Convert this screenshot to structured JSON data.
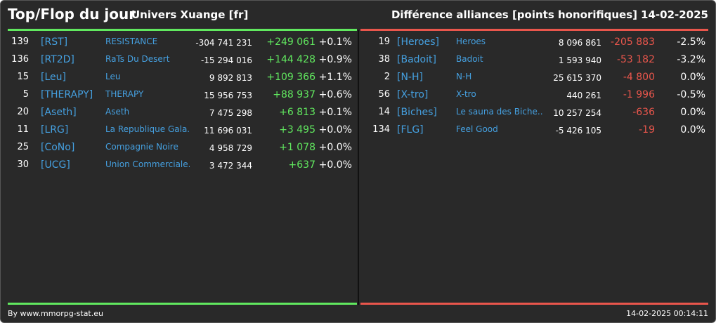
{
  "header": {
    "title": "Top/Flop du jour",
    "univers": "Univers Xuange [fr]",
    "description": "Différence alliances [points honorifiques]",
    "date": "14-02-2025"
  },
  "colors": {
    "background": "#292929",
    "positive": "#61e85f",
    "negative": "#e9564c",
    "link": "#45a0e0"
  },
  "top": [
    {
      "rank": "139",
      "tag": "[RST]",
      "name": "RESISTANCE",
      "total": "-304 741 231",
      "diff": "+249 061",
      "pct": "+0.1%"
    },
    {
      "rank": "136",
      "tag": "[RT2D]",
      "name": "RaTs Du Desert",
      "total": "-15 294 016",
      "diff": "+144 428",
      "pct": "+0.9%"
    },
    {
      "rank": "15",
      "tag": "[Leu]",
      "name": "Leu",
      "total": "9 892 813",
      "diff": "+109 366",
      "pct": "+1.1%"
    },
    {
      "rank": "5",
      "tag": "[THERAPY]",
      "name": "THERAPY",
      "total": "15 956 753",
      "diff": "+88 937",
      "pct": "+0.6%"
    },
    {
      "rank": "20",
      "tag": "[Aseth]",
      "name": "Aseth",
      "total": "7 475 298",
      "diff": "+6 813",
      "pct": "+0.1%"
    },
    {
      "rank": "11",
      "tag": "[LRG]",
      "name": "La Republique Gala...",
      "total": "11 696 031",
      "diff": "+3 495",
      "pct": "+0.0%"
    },
    {
      "rank": "25",
      "tag": "[CoNo]",
      "name": "Compagnie Noire",
      "total": "4 958 729",
      "diff": "+1 078",
      "pct": "+0.0%"
    },
    {
      "rank": "30",
      "tag": "[UCG]",
      "name": "Union Commerciale...",
      "total": "3 472 344",
      "diff": "+637",
      "pct": "+0.0%"
    }
  ],
  "flop": [
    {
      "rank": "19",
      "tag": "[Heroes]",
      "name": "Heroes",
      "total": "8 096 861",
      "diff": "-205 883",
      "pct": "-2.5%"
    },
    {
      "rank": "38",
      "tag": "[Badoit]",
      "name": "Badoit",
      "total": "1 593 940",
      "diff": "-53 182",
      "pct": "-3.2%"
    },
    {
      "rank": "2",
      "tag": "[N-H]",
      "name": "N-H",
      "total": "25 615 370",
      "diff": "-4 800",
      "pct": "0.0%"
    },
    {
      "rank": "56",
      "tag": "[X-tro]",
      "name": "X-tro",
      "total": "440 261",
      "diff": "-1 996",
      "pct": "-0.5%"
    },
    {
      "rank": "14",
      "tag": "[Biches]",
      "name": "Le sauna des Biche...",
      "total": "10 257 254",
      "diff": "-636",
      "pct": "0.0%"
    },
    {
      "rank": "134",
      "tag": "[FLG]",
      "name": "Feel Good",
      "total": "-5 426 105",
      "diff": "-19",
      "pct": "0.0%"
    }
  ],
  "footer": {
    "source": "By www.mmorpg-stat.eu",
    "timestamp": "14-02-2025 00:14:11"
  }
}
